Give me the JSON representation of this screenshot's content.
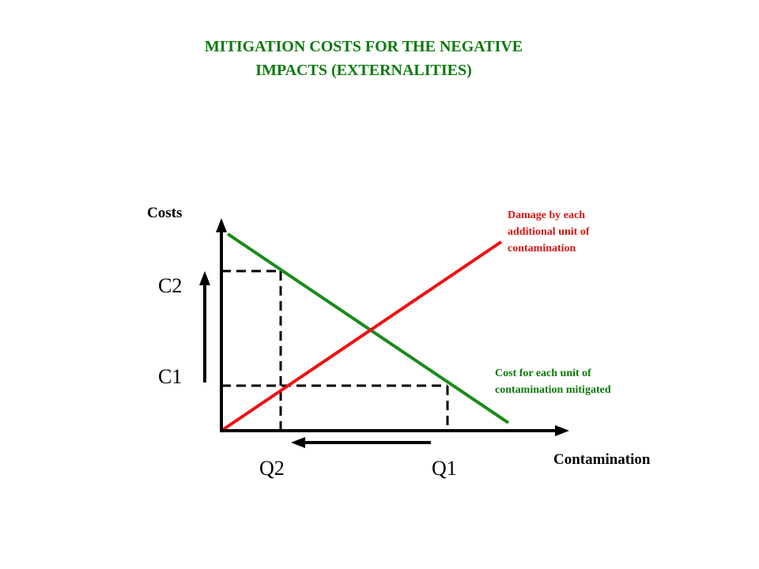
{
  "title": {
    "line1": "MITIGATION COSTS FOR THE NEGATIVE",
    "line2": "IMPACTS (EXTERNALITIES)"
  },
  "axes": {
    "y_label": "Costs",
    "x_label": "Contamination"
  },
  "levels": {
    "c2": "C2",
    "c1": "C1",
    "q2": "Q2",
    "q1": "Q1"
  },
  "curves": {
    "damage": {
      "line1": "Damage by each",
      "line2": "additional unit of",
      "line3": "contamination",
      "color": "#ee1111"
    },
    "mitigation": {
      "line1": "Cost for each unit of",
      "line2": "contamination mitigated",
      "color": "#1a8a1a"
    }
  },
  "colors": {
    "title": "#0b7a0b",
    "axis": "#000000"
  }
}
